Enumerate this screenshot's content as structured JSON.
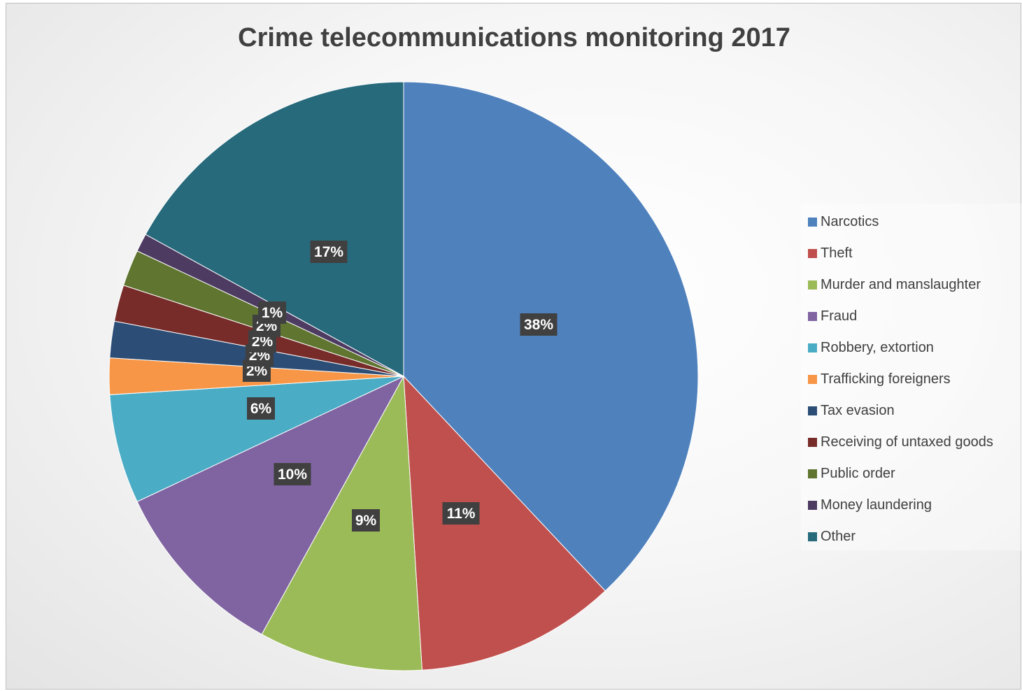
{
  "chart_data": {
    "type": "pie",
    "title": "Crime telecommunications monitoring 2017",
    "legend_position": "right",
    "slices": [
      {
        "name": "Narcotics",
        "value": 38,
        "label": "38%",
        "color": "#4F81BD"
      },
      {
        "name": "Theft",
        "value": 11,
        "label": "11%",
        "color": "#C0504D"
      },
      {
        "name": "Murder and manslaughter",
        "value": 9,
        "label": "9%",
        "color": "#9BBB59"
      },
      {
        "name": "Fraud",
        "value": 10,
        "label": "10%",
        "color": "#8064A2"
      },
      {
        "name": "Robbery, extortion",
        "value": 6,
        "label": "6%",
        "color": "#4BACC6"
      },
      {
        "name": "Trafficking foreigners",
        "value": 2,
        "label": "2%",
        "color": "#F79646"
      },
      {
        "name": "Tax evasion",
        "value": 2,
        "label": "2%",
        "color": "#2C4D75"
      },
      {
        "name": "Receiving of untaxed goods",
        "value": 2,
        "label": "2%",
        "color": "#772C2A"
      },
      {
        "name": "Public order",
        "value": 2,
        "label": "2%",
        "color": "#5F7530"
      },
      {
        "name": "Money laundering",
        "value": 1,
        "label": "1%",
        "color": "#4D3B62"
      },
      {
        "name": "Other",
        "value": 17,
        "label": "17%",
        "color": "#276A7C"
      }
    ]
  }
}
